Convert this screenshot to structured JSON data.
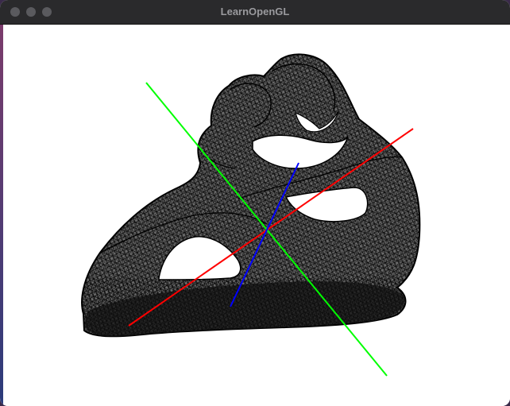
{
  "window": {
    "title": "LearnOpenGL"
  },
  "titlebar": {
    "buttons": [
      {
        "name": "close-button",
        "color": "#5a5a5e"
      },
      {
        "name": "minimize-button",
        "color": "#5a5a5e"
      },
      {
        "name": "zoom-button",
        "color": "#5a5a5e"
      }
    ]
  },
  "scene": {
    "background": "#ffffff",
    "mesh_color": "#000000",
    "render_mode": "wireframe",
    "axes": [
      {
        "name": "x-axis",
        "color": "#ff0000"
      },
      {
        "name": "y-axis",
        "color": "#00ff00"
      },
      {
        "name": "z-axis",
        "color": "#0000ff"
      }
    ]
  }
}
